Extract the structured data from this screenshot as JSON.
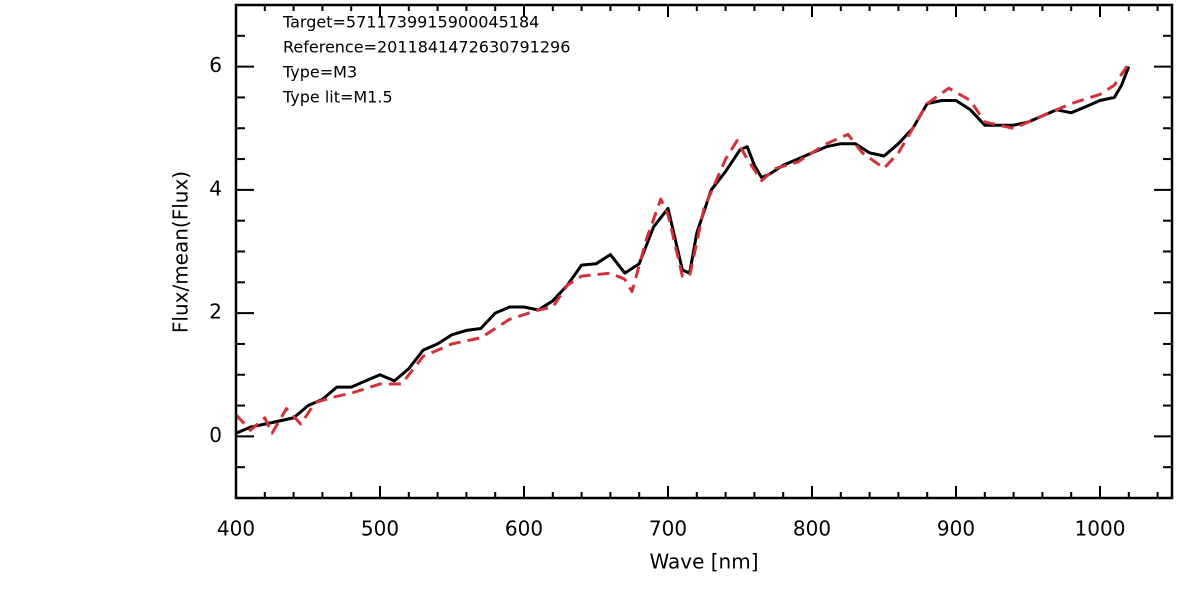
{
  "chart_data": {
    "type": "line",
    "xlabel": "Wave [nm]",
    "ylabel": "Flux/mean(Flux)",
    "annotations": [
      "Target=5711739915900045184",
      "Reference=2011841472630791296",
      "Type=M3",
      "Type lit=M1.5"
    ],
    "xlim": [
      400,
      1050
    ],
    "ylim": [
      -1,
      7
    ],
    "xticks": [
      400,
      500,
      600,
      700,
      800,
      900,
      1000
    ],
    "yticks": [
      0,
      2,
      4,
      6
    ],
    "xminorticks": [
      420,
      440,
      460,
      480,
      520,
      540,
      560,
      580,
      620,
      640,
      660,
      680,
      720,
      740,
      760,
      780,
      820,
      840,
      860,
      880,
      920,
      940,
      960,
      980,
      1020,
      1040
    ],
    "yminorticks": [
      -0.5,
      0.5,
      1,
      1.5,
      2.5,
      3,
      3.5,
      4.5,
      5,
      5.5,
      6.5
    ],
    "series": [
      {
        "color": "#000000",
        "dash": false,
        "x": [
          400,
          410,
          420,
          430,
          440,
          450,
          460,
          470,
          480,
          490,
          500,
          510,
          520,
          530,
          540,
          550,
          560,
          570,
          580,
          590,
          600,
          610,
          620,
          630,
          640,
          650,
          660,
          670,
          680,
          690,
          700,
          705,
          710,
          715,
          720,
          730,
          740,
          750,
          755,
          760,
          765,
          770,
          780,
          790,
          800,
          810,
          820,
          830,
          840,
          850,
          860,
          870,
          880,
          890,
          900,
          910,
          920,
          930,
          940,
          950,
          960,
          970,
          980,
          990,
          1000,
          1010,
          1015,
          1020
        ],
        "values": [
          0.05,
          0.15,
          0.2,
          0.25,
          0.3,
          0.5,
          0.6,
          0.8,
          0.8,
          0.9,
          1.0,
          0.9,
          1.1,
          1.4,
          1.5,
          1.65,
          1.72,
          1.75,
          2.0,
          2.1,
          2.1,
          2.05,
          2.2,
          2.45,
          2.78,
          2.8,
          2.95,
          2.65,
          2.8,
          3.4,
          3.7,
          3.2,
          2.7,
          2.65,
          3.3,
          4.0,
          4.3,
          4.65,
          4.7,
          4.4,
          4.2,
          4.25,
          4.4,
          4.5,
          4.6,
          4.7,
          4.75,
          4.75,
          4.6,
          4.55,
          4.75,
          5.0,
          5.4,
          5.45,
          5.45,
          5.3,
          5.05,
          5.05,
          5.05,
          5.1,
          5.2,
          5.3,
          5.25,
          5.35,
          5.45,
          5.5,
          5.7,
          6.0
        ]
      },
      {
        "color": "#d0323c",
        "dash": true,
        "x": [
          400,
          410,
          420,
          425,
          435,
          445,
          455,
          470,
          480,
          500,
          515,
          530,
          550,
          570,
          590,
          610,
          620,
          630,
          640,
          660,
          670,
          675,
          685,
          695,
          700,
          710,
          715,
          725,
          740,
          748,
          755,
          765,
          775,
          790,
          810,
          825,
          835,
          850,
          860,
          880,
          895,
          910,
          920,
          940,
          960,
          980,
          1000,
          1010,
          1020
        ],
        "values": [
          0.35,
          0.1,
          0.3,
          0.05,
          0.45,
          0.2,
          0.55,
          0.65,
          0.7,
          0.85,
          0.85,
          1.3,
          1.5,
          1.6,
          1.9,
          2.05,
          2.1,
          2.45,
          2.6,
          2.65,
          2.55,
          2.35,
          3.2,
          3.85,
          3.6,
          2.6,
          2.6,
          3.7,
          4.5,
          4.8,
          4.5,
          4.15,
          4.35,
          4.45,
          4.75,
          4.9,
          4.6,
          4.35,
          4.6,
          5.4,
          5.65,
          5.45,
          5.1,
          5.0,
          5.2,
          5.4,
          5.55,
          5.7,
          6.05
        ]
      }
    ]
  }
}
